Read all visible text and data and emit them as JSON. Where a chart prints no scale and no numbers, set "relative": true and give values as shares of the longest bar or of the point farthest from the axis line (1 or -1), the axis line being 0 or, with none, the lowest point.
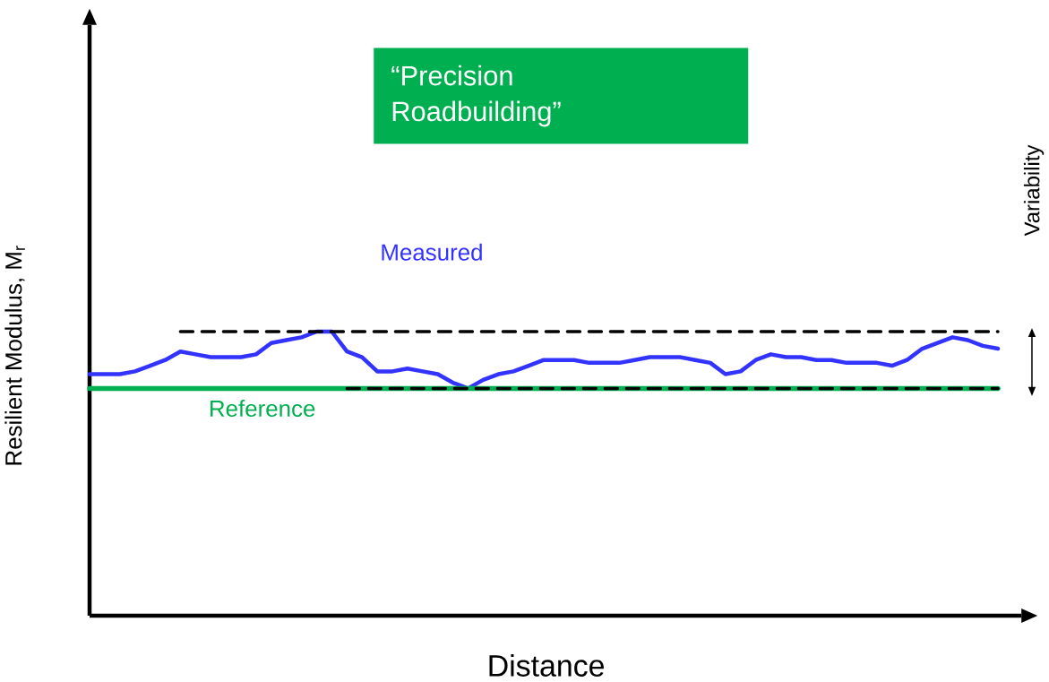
{
  "chart_data": {
    "type": "line",
    "relative": true,
    "xlabel": "Distance",
    "ylabel": "Resilient Modulus, M$_{r}$",
    "annotations": [
      "“Precision Roadbuilding”",
      "Variability"
    ],
    "categories": [
      null,
      null,
      null,
      null,
      null,
      null,
      null,
      null,
      null,
      null,
      null,
      null,
      null,
      null,
      null,
      null,
      null,
      null,
      null,
      null,
      null,
      null,
      null,
      null,
      null,
      null,
      null,
      null,
      null,
      null,
      null,
      null,
      null,
      null,
      null,
      null,
      null,
      null,
      null,
      null,
      null,
      null,
      null,
      null,
      null,
      null,
      null,
      null,
      null,
      null,
      null,
      null,
      null,
      null,
      null,
      null,
      null,
      null,
      null,
      null,
      null
    ],
    "series": [
      {
        "name": "Measured",
        "color": "#3333ff",
        "values": [
          0.85,
          0.85,
          0.85,
          0.86,
          0.88,
          0.9,
          0.93,
          0.92,
          0.91,
          0.91,
          0.91,
          0.92,
          0.96,
          0.97,
          0.98,
          1.0,
          1.0,
          0.93,
          0.91,
          0.86,
          0.86,
          0.87,
          0.86,
          0.85,
          0.82,
          0.8,
          0.83,
          0.85,
          0.86,
          0.88,
          0.9,
          0.9,
          0.9,
          0.89,
          0.89,
          0.89,
          0.9,
          0.91,
          0.91,
          0.91,
          0.9,
          0.89,
          0.85,
          0.86,
          0.9,
          0.92,
          0.91,
          0.91,
          0.9,
          0.9,
          0.89,
          0.89,
          0.89,
          0.88,
          0.9,
          0.94,
          0.96,
          0.98,
          0.97,
          0.95,
          0.94
        ]
      },
      {
        "name": "Reference",
        "color": "#00b050",
        "values": [
          0.8,
          0.8,
          0.8,
          0.8,
          0.8,
          0.8,
          0.8,
          0.8,
          0.8,
          0.8,
          0.8,
          0.8,
          0.8,
          0.8,
          0.8,
          0.8,
          0.8,
          0.8,
          0.8,
          0.8,
          0.8,
          0.8,
          0.8,
          0.8,
          0.8,
          0.8,
          0.8,
          0.8,
          0.8,
          0.8,
          0.8,
          0.8,
          0.8,
          0.8,
          0.8,
          0.8,
          0.8,
          0.8,
          0.8,
          0.8,
          0.8,
          0.8,
          0.8,
          0.8,
          0.8,
          0.8,
          0.8,
          0.8,
          0.8,
          0.8,
          0.8,
          0.8,
          0.8,
          0.8,
          0.8,
          0.8,
          0.8,
          0.8,
          0.8,
          0.8,
          0.8
        ]
      },
      {
        "color": "#000000",
        "line_style": "dashed",
        "values": [
          null,
          null,
          null,
          null,
          null,
          null,
          1.0,
          1.0,
          1.0,
          1.0,
          1.0,
          1.0,
          1.0,
          1.0,
          1.0,
          1.0,
          1.0,
          1.0,
          1.0,
          1.0,
          1.0,
          1.0,
          1.0,
          1.0,
          1.0,
          1.0,
          1.0,
          1.0,
          1.0,
          1.0,
          1.0,
          1.0,
          1.0,
          1.0,
          1.0,
          1.0,
          1.0,
          1.0,
          1.0,
          1.0,
          1.0,
          1.0,
          1.0,
          1.0,
          1.0,
          1.0,
          1.0,
          1.0,
          1.0,
          1.0,
          1.0,
          1.0,
          1.0,
          1.0,
          1.0,
          1.0,
          1.0,
          1.0,
          1.0,
          1.0,
          1.0
        ]
      },
      {
        "color": "#000000",
        "line_style": "dashed",
        "values": [
          null,
          null,
          null,
          null,
          null,
          null,
          null,
          null,
          null,
          null,
          null,
          null,
          null,
          null,
          null,
          null,
          null,
          0.8,
          0.8,
          0.8,
          0.8,
          0.8,
          0.8,
          0.8,
          0.8,
          0.8,
          0.8,
          0.8,
          0.8,
          0.8,
          0.8,
          0.8,
          0.8,
          0.8,
          0.8,
          0.8,
          0.8,
          0.8,
          0.8,
          0.8,
          0.8,
          0.8,
          0.8,
          0.8,
          0.8,
          0.8,
          0.8,
          0.8,
          0.8,
          0.8,
          0.8,
          0.8,
          0.8,
          0.8,
          0.8,
          0.8,
          0.8,
          0.8,
          0.8,
          0.8,
          0.8
        ]
      }
    ]
  }
}
